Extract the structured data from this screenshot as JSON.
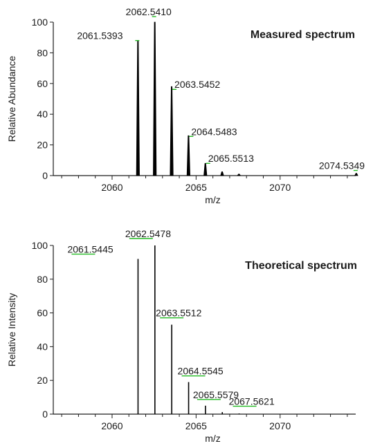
{
  "chart_data": [
    {
      "type": "line",
      "title": "Measured spectrum",
      "xlabel": "m/z",
      "ylabel": "Relative Abundance",
      "xlim": [
        2056.5,
        2074.5
      ],
      "ylim": [
        0,
        100
      ],
      "x_ticks": [
        2060,
        2065,
        2070
      ],
      "y_ticks": [
        0,
        20,
        40,
        60,
        80,
        100
      ],
      "grid": false,
      "series": [
        {
          "peaks": [
            {
              "x": 2061.5393,
              "y": 88
            },
            {
              "x": 2062.541,
              "y": 100
            },
            {
              "x": 2063.5452,
              "y": 58
            },
            {
              "x": 2064.5483,
              "y": 26
            },
            {
              "x": 2065.5513,
              "y": 8
            },
            {
              "x": 2066.55,
              "y": 2.5
            },
            {
              "x": 2067.55,
              "y": 1
            },
            {
              "x": 2074.5349,
              "y": 1.5
            }
          ]
        }
      ],
      "annotations": [
        {
          "text": "2061.5393",
          "x": 2061.5393,
          "y": 88
        },
        {
          "text": "2062.5410",
          "x": 2062.541,
          "y": 100
        },
        {
          "text": "2063.5452",
          "x": 2063.5452,
          "y": 58
        },
        {
          "text": "2064.5483",
          "x": 2064.5483,
          "y": 26
        },
        {
          "text": "2065.5513",
          "x": 2065.5513,
          "y": 8
        },
        {
          "text": "2074.5349",
          "x": 2074.5349,
          "y": 2
        }
      ]
    },
    {
      "type": "bar",
      "title": "Theoretical spectrum",
      "xlabel": "m/z",
      "ylabel": "Relative Intensity",
      "xlim": [
        2056.5,
        2074.5
      ],
      "ylim": [
        0,
        100
      ],
      "x_ticks": [
        2060,
        2065,
        2070
      ],
      "y_ticks": [
        0,
        20,
        40,
        60,
        80,
        100
      ],
      "grid": false,
      "series": [
        {
          "peaks": [
            {
              "x": 2061.5445,
              "y": 92
            },
            {
              "x": 2062.5478,
              "y": 100
            },
            {
              "x": 2063.5512,
              "y": 53
            },
            {
              "x": 2064.5545,
              "y": 19
            },
            {
              "x": 2065.5579,
              "y": 5
            },
            {
              "x": 2066.56,
              "y": 1.2
            },
            {
              "x": 2067.5621,
              "y": 0.4
            }
          ]
        }
      ],
      "annotations": [
        {
          "text": "2061.5445",
          "x": 2061.5445,
          "y": 92
        },
        {
          "text": "2062.5478",
          "x": 2062.5478,
          "y": 100
        },
        {
          "text": "2063.5512",
          "x": 2063.5512,
          "y": 53
        },
        {
          "text": "2064.5545",
          "x": 2064.5545,
          "y": 19
        },
        {
          "text": "2065.5579",
          "x": 2065.5579,
          "y": 5
        },
        {
          "text": "2067.5621",
          "x": 2067.5621,
          "y": 1
        }
      ]
    }
  ],
  "colors": {
    "axis": "#1a1a1a",
    "peak": "#000000",
    "label_marker": "#22bb22"
  }
}
